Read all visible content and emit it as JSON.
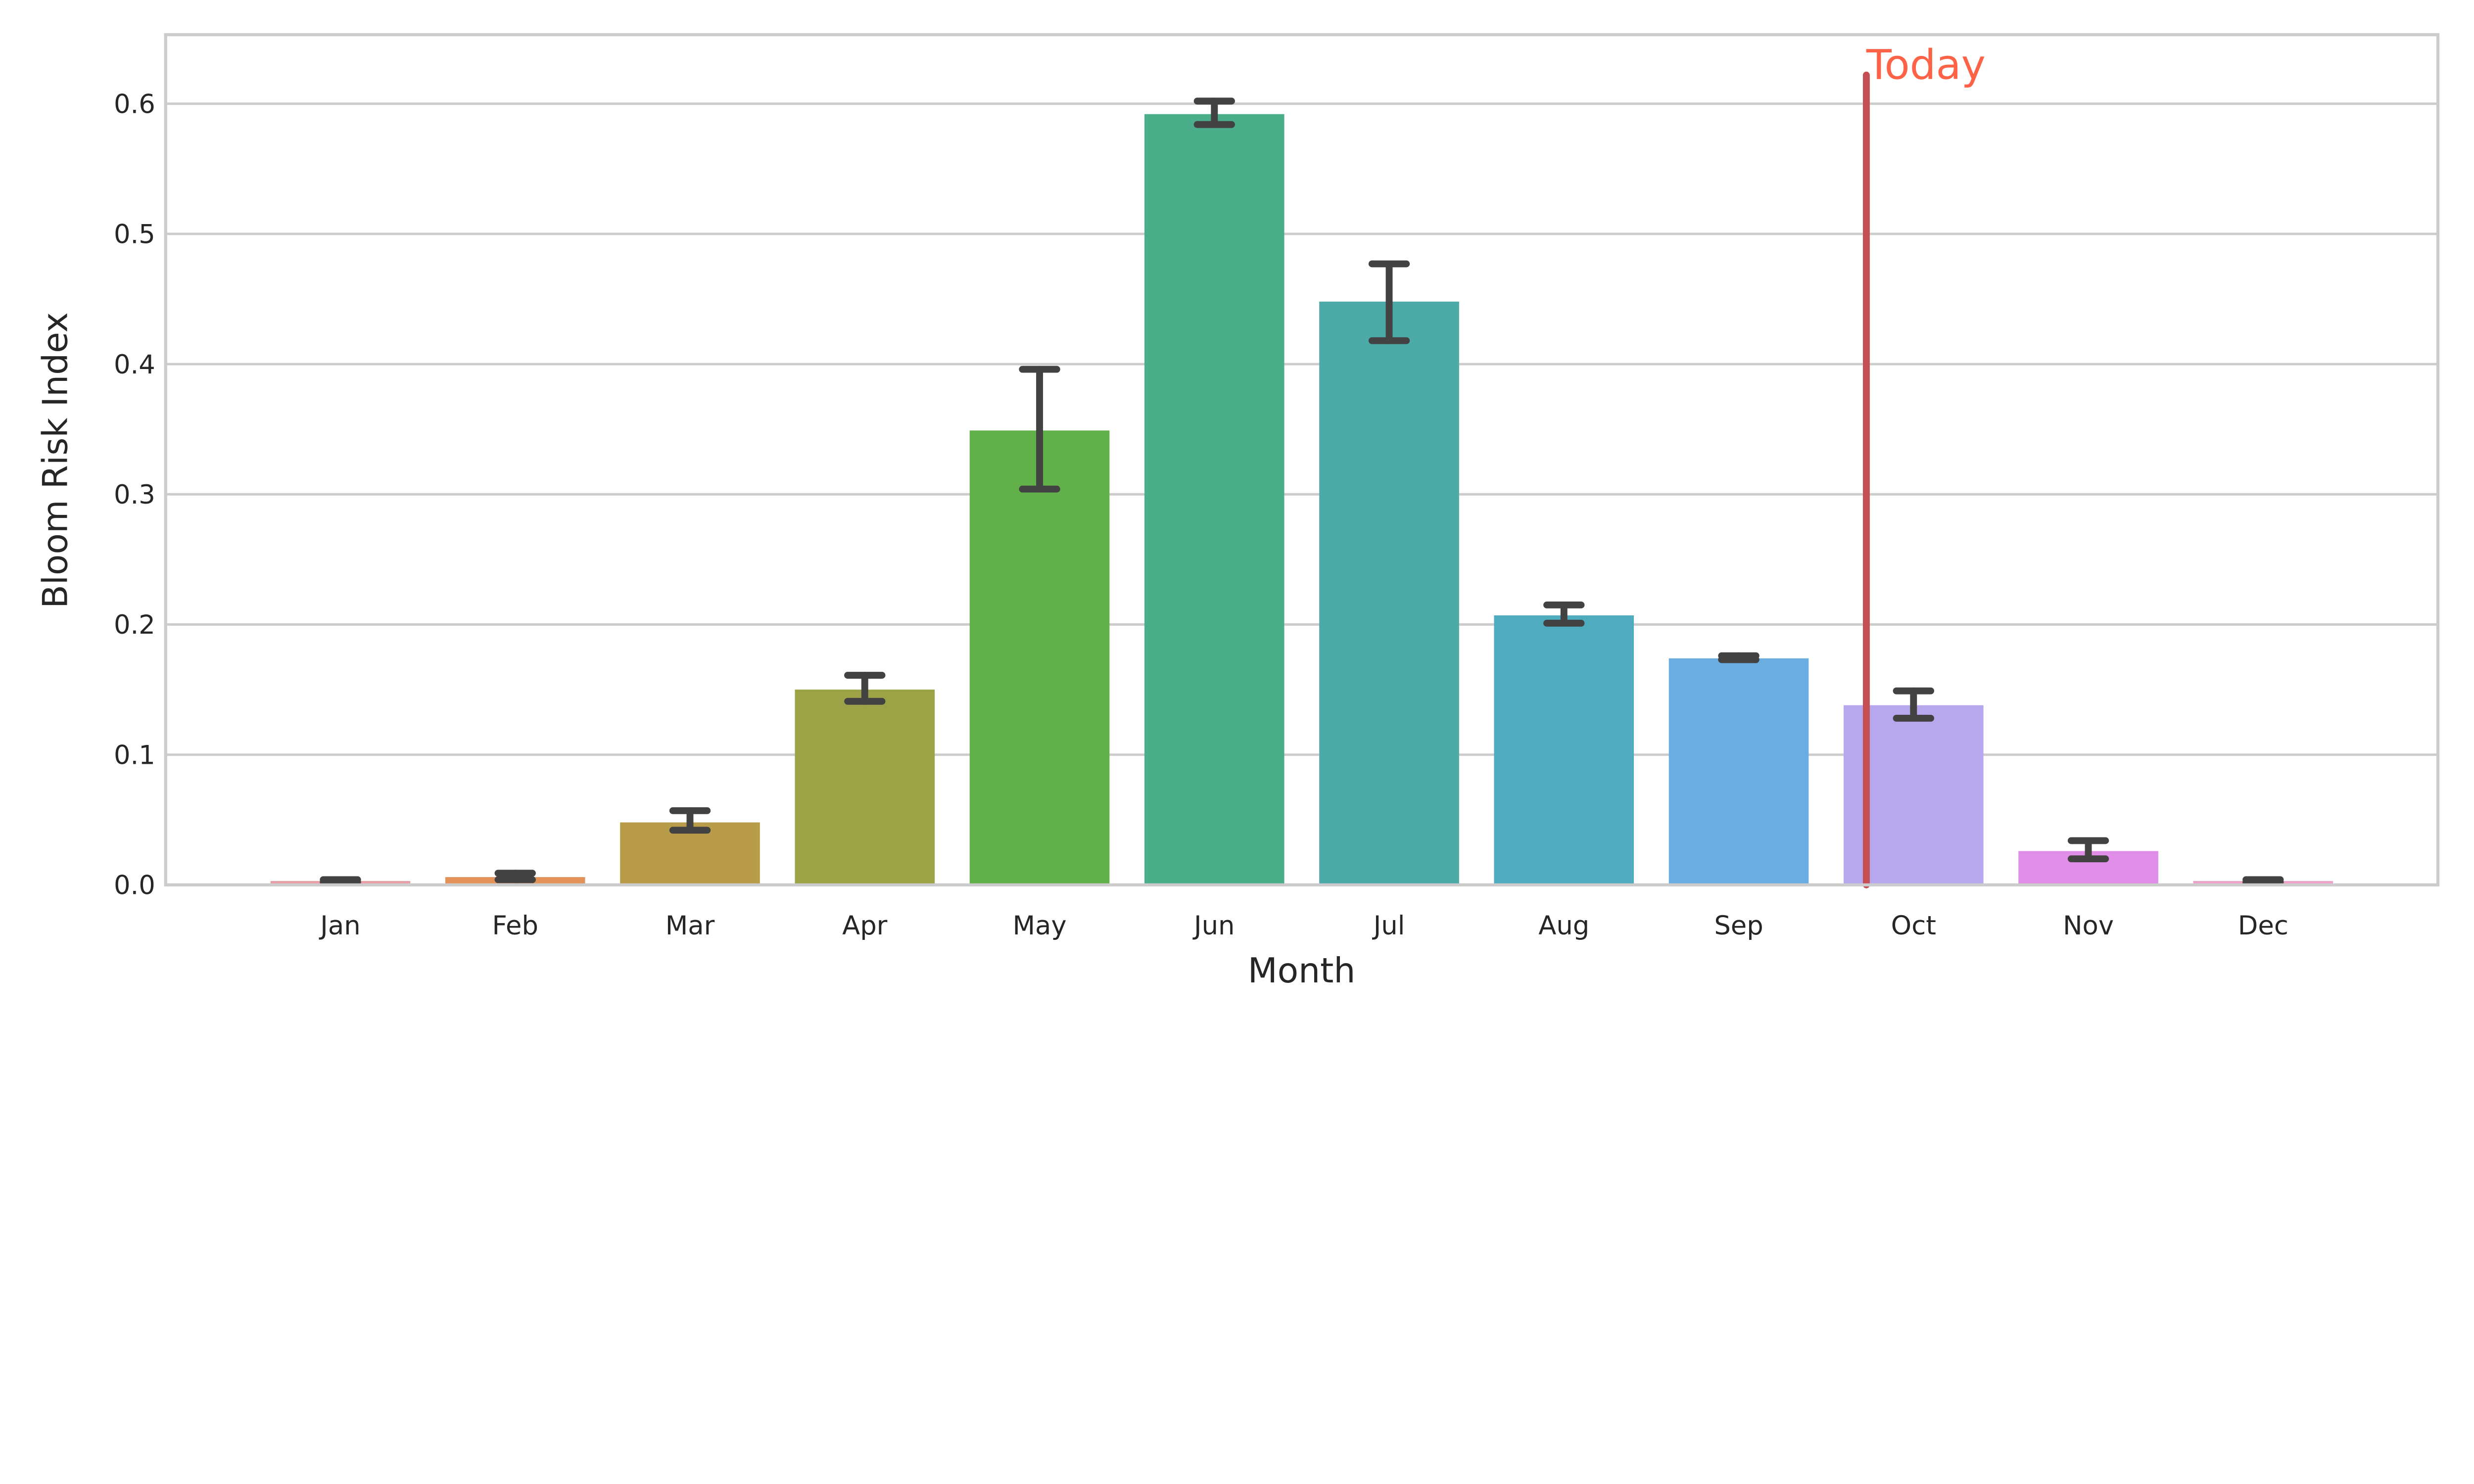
{
  "chart_data": {
    "type": "bar",
    "title": "",
    "xlabel": "Month",
    "ylabel": "Bloom Risk Index",
    "ylim": [
      0,
      0.653
    ],
    "yticks": [
      "0.0",
      "0.1",
      "0.2",
      "0.3",
      "0.4",
      "0.5",
      "0.6"
    ],
    "grid": "horizontal",
    "categories": [
      "Jan",
      "Feb",
      "Mar",
      "Apr",
      "May",
      "Jun",
      "Jul",
      "Aug",
      "Sep",
      "Oct",
      "Nov",
      "Dec"
    ],
    "values": [
      0.003,
      0.006,
      0.048,
      0.15,
      0.349,
      0.592,
      0.448,
      0.207,
      0.174,
      0.138,
      0.026,
      0.003
    ],
    "error_low": [
      0.002,
      0.004,
      0.042,
      0.141,
      0.304,
      0.584,
      0.418,
      0.201,
      0.173,
      0.128,
      0.02,
      0.002
    ],
    "error_high": [
      0.004,
      0.009,
      0.057,
      0.161,
      0.396,
      0.602,
      0.477,
      0.215,
      0.176,
      0.149,
      0.034,
      0.004
    ],
    "colors": [
      "#e8a0a8",
      "#e3925a",
      "#b89c49",
      "#9ba346",
      "#61b04a",
      "#4aae8a",
      "#4caaa7",
      "#4fabbe",
      "#6aaee1",
      "#b7a7ec",
      "#e08ee8",
      "#eea3ca"
    ],
    "error_color": "#424242",
    "annotation": {
      "label": "Today",
      "position": 8.73,
      "y_top": 0.622,
      "line_color": "#c44e52",
      "text_color": "#ff6347"
    }
  }
}
